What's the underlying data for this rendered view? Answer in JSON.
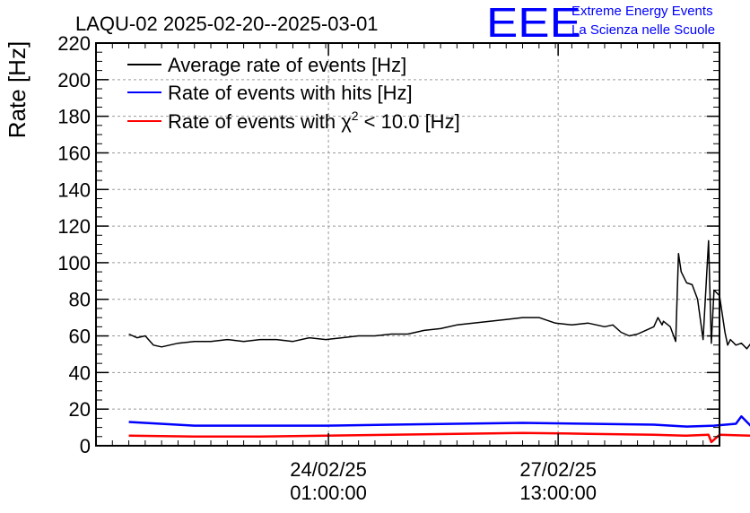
{
  "brand": {
    "logo_text": "EEE",
    "line1": "Extreme Energy Events",
    "line2": "La Scienza nelle Scuole"
  },
  "chart_data": {
    "type": "line",
    "title": "LAQU-02 2025-02-20--2025-03-01",
    "ylabel": "Rate [Hz]",
    "xlabel": "",
    "ylim": [
      0,
      220
    ],
    "yticks": [
      0,
      20,
      40,
      60,
      80,
      100,
      120,
      140,
      160,
      180,
      200,
      220
    ],
    "xlim": [
      "2025-02-20T12:00",
      "2025-03-02T00:00"
    ],
    "xticks": [
      {
        "x": "2025-02-24T01:00",
        "line1": "24/02/25",
        "line2": "01:00:00"
      },
      {
        "x": "2025-02-27T13:00",
        "line1": "27/02/25",
        "line2": "13:00:00"
      }
    ],
    "grid": true,
    "legend_position": "top-left",
    "colors": {
      "average": "#000000",
      "hits": "#0000ff",
      "chi2": "#ff0000"
    },
    "series": [
      {
        "name": "Average rate of events [Hz]",
        "key": "average",
        "x": [
          "2025-02-21T00:00",
          "2025-02-21T03:00",
          "2025-02-21T06:00",
          "2025-02-21T09:00",
          "2025-02-21T12:00",
          "2025-02-21T18:00",
          "2025-02-22T00:00",
          "2025-02-22T06:00",
          "2025-02-22T12:00",
          "2025-02-22T18:00",
          "2025-02-23T00:00",
          "2025-02-23T06:00",
          "2025-02-23T12:00",
          "2025-02-23T18:00",
          "2025-02-24T00:00",
          "2025-02-24T06:00",
          "2025-02-24T12:00",
          "2025-02-24T18:00",
          "2025-02-25T00:00",
          "2025-02-25T06:00",
          "2025-02-25T12:00",
          "2025-02-25T18:00",
          "2025-02-26T00:00",
          "2025-02-26T06:00",
          "2025-02-26T12:00",
          "2025-02-26T18:00",
          "2025-02-27T00:00",
          "2025-02-27T06:00",
          "2025-02-27T12:00",
          "2025-02-27T18:00",
          "2025-02-28T00:00",
          "2025-02-28T06:00",
          "2025-02-28T09:00",
          "2025-02-28T12:00",
          "2025-02-28T15:00",
          "2025-02-28T18:00",
          "2025-02-28T21:00",
          "2025-03-01T00:00",
          "2025-03-01T01:30",
          "2025-03-01T03:00",
          "2025-03-01T03:30",
          "2025-03-01T06:00",
          "2025-03-01T08:00",
          "2025-03-01T09:00",
          "2025-03-01T10:00",
          "2025-03-01T12:00",
          "2025-03-01T14:00",
          "2025-03-01T16:00",
          "2025-03-01T18:00",
          "2025-03-01T20:00",
          "2025-03-01T21:00",
          "2025-03-01T22:00",
          "2025-03-02T00:00",
          "2025-03-02T02:00",
          "2025-03-02T03:00",
          "2025-03-02T04:00",
          "2025-03-02T06:00",
          "2025-03-02T08:00",
          "2025-03-02T10:00",
          "2025-03-02T12:00"
        ],
        "y": [
          61,
          59,
          60,
          55,
          54,
          56,
          57,
          57,
          58,
          57,
          58,
          58,
          57,
          59,
          58,
          59,
          60,
          60,
          61,
          61,
          63,
          64,
          66,
          67,
          68,
          69,
          70,
          70,
          67,
          66,
          67,
          65,
          66,
          62,
          60,
          61,
          63,
          65,
          70,
          66,
          68,
          65,
          57,
          105,
          95,
          89,
          88,
          80,
          58,
          112,
          56,
          85,
          82,
          62,
          55,
          58,
          55,
          56,
          53,
          57
        ],
        "note_x_range_extends": false
      },
      {
        "name": "Rate of events with hits [Hz]",
        "key": "hits",
        "x": [
          "2025-02-21T00:00",
          "2025-02-22T00:00",
          "2025-02-23T00:00",
          "2025-02-24T00:00",
          "2025-02-25T00:00",
          "2025-02-26T00:00",
          "2025-02-27T00:00",
          "2025-02-28T00:00",
          "2025-03-01T00:00",
          "2025-03-01T12:00",
          "2025-03-01T22:00",
          "2025-03-02T06:00",
          "2025-03-02T08:00",
          "2025-03-02T12:00"
        ],
        "y": [
          13,
          11,
          11,
          11,
          11.5,
          12,
          12.5,
          12,
          11.5,
          10.5,
          11,
          12,
          16,
          10
        ]
      },
      {
        "name": "Rate of events with χ² < 10.0 [Hz]",
        "key": "chi2",
        "x": [
          "2025-02-21T00:00",
          "2025-02-22T00:00",
          "2025-02-23T00:00",
          "2025-02-24T00:00",
          "2025-02-25T00:00",
          "2025-02-26T00:00",
          "2025-02-27T00:00",
          "2025-02-28T00:00",
          "2025-03-01T00:00",
          "2025-03-01T12:00",
          "2025-03-01T20:00",
          "2025-03-01T21:00",
          "2025-03-02T00:00",
          "2025-03-02T12:00"
        ],
        "y": [
          5.5,
          5,
          5,
          5.5,
          6,
          6.5,
          7,
          6.5,
          6,
          5.5,
          6,
          2,
          6,
          5.5
        ]
      }
    ],
    "legend": [
      {
        "key": "average",
        "text": "Average rate of events [Hz]"
      },
      {
        "key": "hits",
        "text": "Rate of events with hits [Hz]"
      },
      {
        "key": "chi2",
        "text_pre": "Rate of events with χ",
        "sup": "2",
        "text_post": " < 10.0 [Hz]"
      }
    ]
  }
}
